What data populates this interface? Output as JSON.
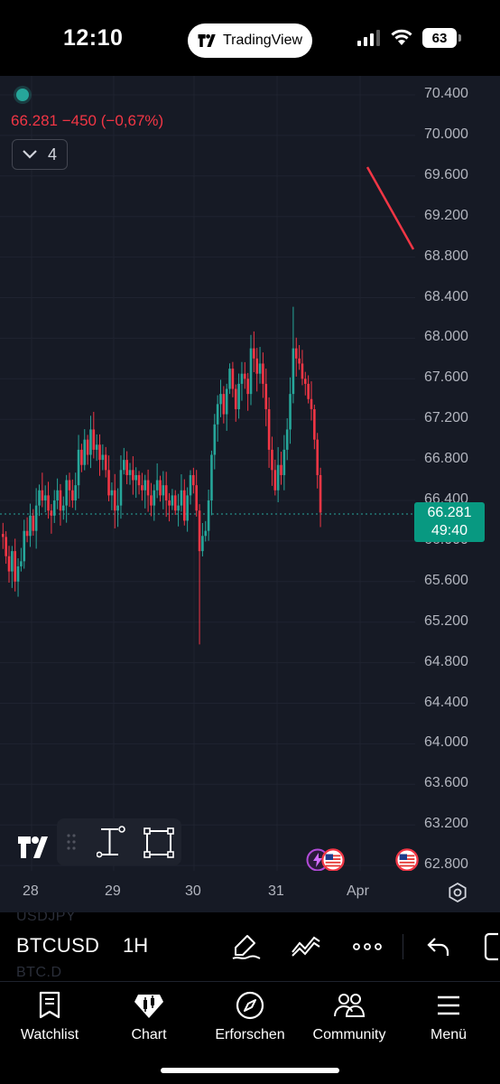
{
  "status_bar": {
    "time": "12:10",
    "app_pill": "TradingView",
    "battery": "63"
  },
  "chart": {
    "legend": {
      "price_change": "66.281  −450 (−0,67%)"
    },
    "indicators_count": "4",
    "price_axis": [
      "70.400",
      "70.000",
      "69.600",
      "69.200",
      "68.800",
      "68.400",
      "68.000",
      "67.600",
      "67.200",
      "66.800",
      "66.400",
      "66.000",
      "65.600",
      "65.200",
      "64.800",
      "64.400",
      "64.000",
      "63.600",
      "63.200",
      "62.800"
    ],
    "last_price": "66.281",
    "countdown": "49:40",
    "date_axis": [
      "28",
      "29",
      "30",
      "31",
      "Apr"
    ],
    "colors": {
      "up": "#26a69a",
      "down": "#f23645",
      "background": "#161a25",
      "grid": "#1f2330"
    }
  },
  "chart_data": {
    "type": "candlestick",
    "symbol": "BTCUSD",
    "interval": "1H",
    "ylim": [
      62600,
      70600
    ],
    "x_ticks": [
      "28",
      "29",
      "30",
      "31",
      "Apr"
    ],
    "closes": [
      66040,
      65850,
      65700,
      65900,
      65600,
      65750,
      65800,
      66100,
      66050,
      66250,
      66100,
      66350,
      66500,
      66400,
      66450,
      66300,
      66250,
      66400,
      66500,
      66300,
      66350,
      66600,
      66500,
      66400,
      66550,
      66900,
      66750,
      67000,
      66850,
      67100,
      66900,
      66950,
      66800,
      66850,
      66700,
      66450,
      66500,
      66300,
      66350,
      66700,
      66800,
      66650,
      66700,
      66600,
      66650,
      66550,
      66500,
      66600,
      66450,
      66350,
      66500,
      66600,
      66450,
      66550,
      66400,
      66350,
      66450,
      66300,
      66350,
      66500,
      66200,
      66450,
      66650,
      66550,
      66300,
      65900,
      66050,
      66100,
      66400,
      66850,
      67150,
      67350,
      67450,
      67250,
      67500,
      67700,
      67500,
      67300,
      67550,
      67650,
      67600,
      67450,
      67900,
      67800,
      67650,
      67750,
      67550,
      67300,
      66900,
      66700,
      66500,
      66750,
      66650,
      66900,
      67100,
      67450,
      67900,
      67800,
      67750,
      67600,
      67550,
      67400,
      67300,
      67000,
      66650,
      66281
    ],
    "wick_extremes": {
      "high": 68310,
      "low": 64980
    }
  },
  "drawing_toolbar": {
    "tools": [
      "measure-tool",
      "rectangle-tool"
    ]
  },
  "symbol_bar": {
    "ghost_above": "USDJPY",
    "symbol": "BTCUSD",
    "interval": "1H",
    "ghost_below": "BTC.D"
  },
  "bottom_nav": {
    "items": [
      {
        "label": "Watchlist",
        "icon": "bookmark-icon"
      },
      {
        "label": "Chart",
        "icon": "chart-icon"
      },
      {
        "label": "Erforschen",
        "icon": "compass-icon"
      },
      {
        "label": "Community",
        "icon": "community-icon"
      },
      {
        "label": "Menü",
        "icon": "menu-icon"
      }
    ]
  }
}
